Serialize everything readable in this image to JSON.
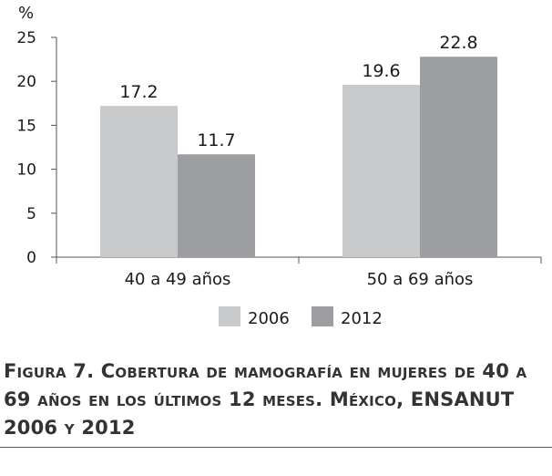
{
  "chart_data": {
    "type": "bar",
    "ylabel": "%",
    "ylim": [
      0,
      25
    ],
    "yticks": [
      0,
      5,
      10,
      15,
      20,
      25
    ],
    "categories": [
      "40 a 49 años",
      "50 a 69 años"
    ],
    "series": [
      {
        "name": "2006",
        "values": [
          17.2,
          19.6
        ],
        "labels": [
          "17.2",
          "19.6"
        ],
        "color": "#c8c9cb"
      },
      {
        "name": "2012",
        "values": [
          11.7,
          22.8
        ],
        "labels": [
          "11.7",
          "22.8"
        ],
        "color": "#9c9ea1"
      }
    ],
    "grid": false,
    "legend": "bottom"
  },
  "caption": "Figura 7. Cobertura de mamografía en mujeres de 40  a 69 años en los últimos 12 meses. México, ENSANUT 2006 y 2012"
}
